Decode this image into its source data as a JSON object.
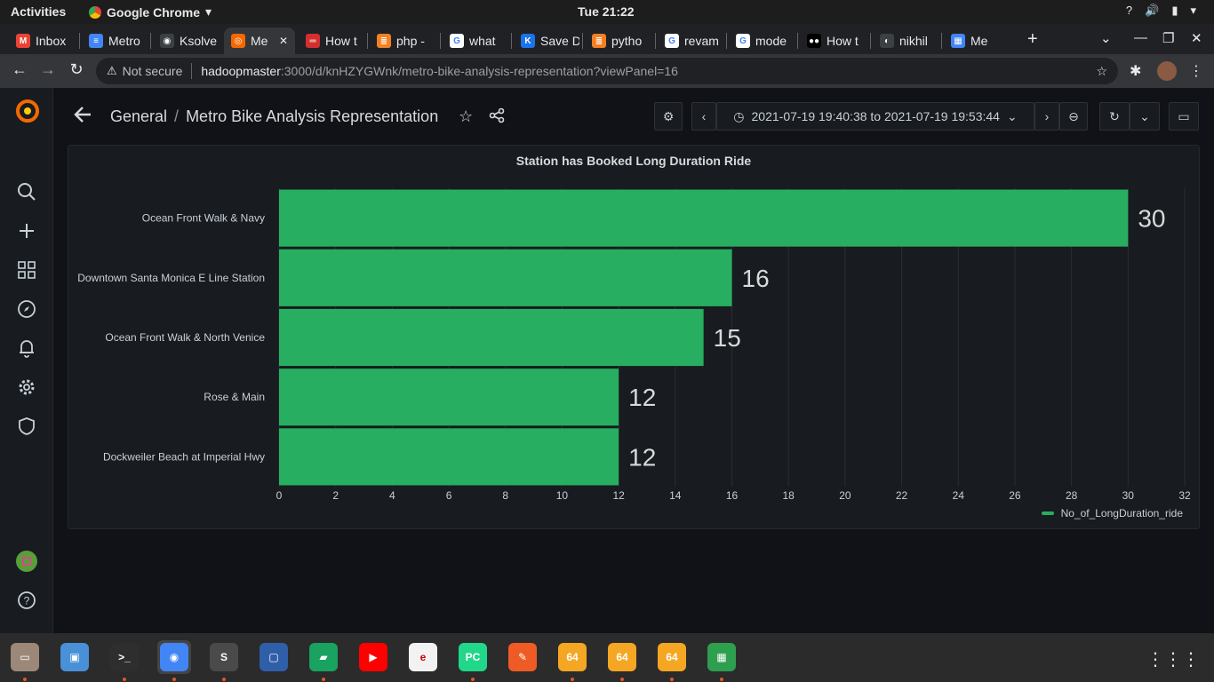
{
  "system": {
    "activities": "Activities",
    "app_name": "Google Chrome",
    "clock": "Tue 21:22"
  },
  "tabs": [
    {
      "label": "Inbox",
      "icon_color": "#ea4335",
      "icon_text": "M"
    },
    {
      "label": "Metro",
      "icon_color": "#4285f4",
      "icon_text": "≡"
    },
    {
      "label": "Ksolve",
      "icon_color": "#3c4043",
      "icon_text": "◉"
    },
    {
      "label": "Me",
      "icon_color": "#f46800",
      "icon_text": "◎",
      "active": true
    },
    {
      "label": "How t",
      "icon_color": "#d32f2f",
      "icon_text": "═"
    },
    {
      "label": "php -",
      "icon_color": "#f48024",
      "icon_text": "≣"
    },
    {
      "label": "what",
      "icon_color": "#ffffff",
      "icon_text": "G"
    },
    {
      "label": "Save D",
      "icon_color": "#1a73e8",
      "icon_text": "K"
    },
    {
      "label": "pytho",
      "icon_color": "#f48024",
      "icon_text": "≣"
    },
    {
      "label": "revam",
      "icon_color": "#ffffff",
      "icon_text": "G"
    },
    {
      "label": "mode",
      "icon_color": "#ffffff",
      "icon_text": "G"
    },
    {
      "label": "How t",
      "icon_color": "#000000",
      "icon_text": "●●"
    },
    {
      "label": "nikhil",
      "icon_color": "#3c4043",
      "icon_text": "◐"
    },
    {
      "label": "Me",
      "icon_color": "#4285f4",
      "icon_text": "▦"
    }
  ],
  "address_bar": {
    "security": "Not secure",
    "host": "hadoopmaster",
    "path": ":3000/d/knHZYGWnk/metro-bike-analysis-representation?viewPanel=16"
  },
  "dashboard": {
    "breadcrumb_folder": "General",
    "breadcrumb_separator": "/",
    "title": "Metro Bike Analysis Representation",
    "time_range": "2021-07-19 19:40:38 to 2021-07-19 19:53:44"
  },
  "panel": {
    "title": "Station has Booked Long Duration Ride",
    "legend": "No_of_LongDuration_ride"
  },
  "chart_data": {
    "type": "bar",
    "orientation": "horizontal",
    "title": "Station has Booked Long Duration Ride",
    "categories": [
      "Ocean Front Walk & Navy",
      "Downtown Santa Monica E Line Station",
      "Ocean Front Walk & North Venice",
      "Rose & Main",
      "Dockweiler Beach at Imperial Hwy"
    ],
    "series": [
      {
        "name": "No_of_LongDuration_ride",
        "values": [
          30,
          16,
          15,
          12,
          12
        ],
        "color": "#27ae60"
      }
    ],
    "xlim": [
      0,
      32
    ],
    "xticks": [
      0,
      2,
      4,
      6,
      8,
      10,
      12,
      14,
      16,
      18,
      20,
      22,
      24,
      26,
      28,
      30,
      32
    ],
    "grid": true,
    "legend_position": "bottom-right"
  },
  "dock": [
    {
      "name": "files",
      "color": "#9c8878",
      "label": "▭"
    },
    {
      "name": "image-viewer",
      "color": "#4a90d9",
      "label": "▣"
    },
    {
      "name": "terminal",
      "color": "#2e2e2e",
      "label": ">_"
    },
    {
      "name": "chrome",
      "color": "#4285f4",
      "label": "◉",
      "active": true
    },
    {
      "name": "sublime-text",
      "color": "#4a4a4a",
      "label": "S"
    },
    {
      "name": "virtualbox",
      "color": "#2f5fa8",
      "label": "▢"
    },
    {
      "name": "chat",
      "color": "#1aa260",
      "label": "▰"
    },
    {
      "name": "youtube",
      "color": "#ff0000",
      "label": "▶"
    },
    {
      "name": "document-viewer",
      "color": "#f2f2f2",
      "label": "e"
    },
    {
      "name": "pycharm",
      "color": "#21d789",
      "label": "PC"
    },
    {
      "name": "postman",
      "color": "#ef5b25",
      "label": "✎"
    },
    {
      "name": "app-64-a",
      "color": "#f5a623",
      "label": "64"
    },
    {
      "name": "app-64-b",
      "color": "#f5a623",
      "label": "64"
    },
    {
      "name": "app-64-c",
      "color": "#f5a623",
      "label": "64"
    },
    {
      "name": "spreadsheet",
      "color": "#2e9e4f",
      "label": "▦"
    }
  ]
}
